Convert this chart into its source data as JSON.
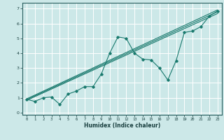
{
  "xlabel": "Humidex (Indice chaleur)",
  "background_color": "#cce8e8",
  "grid_color": "#b8d8d8",
  "line_color": "#1a7a6e",
  "xlim": [
    -0.5,
    23.5
  ],
  "ylim": [
    -0.15,
    7.4
  ],
  "xticks": [
    0,
    1,
    2,
    3,
    4,
    5,
    6,
    7,
    8,
    9,
    10,
    11,
    12,
    13,
    14,
    15,
    16,
    17,
    18,
    19,
    20,
    21,
    22,
    23
  ],
  "yticks": [
    0,
    1,
    2,
    3,
    4,
    5,
    6,
    7
  ],
  "data_x": [
    0,
    1,
    2,
    3,
    4,
    5,
    6,
    7,
    8,
    9,
    10,
    11,
    12,
    13,
    14,
    15,
    16,
    17,
    18,
    19,
    20,
    21,
    22,
    23
  ],
  "data_y": [
    0.9,
    0.75,
    1.0,
    1.05,
    0.55,
    1.25,
    1.45,
    1.75,
    1.75,
    2.6,
    4.0,
    5.1,
    5.0,
    4.0,
    3.6,
    3.55,
    3.0,
    2.2,
    3.5,
    5.4,
    5.5,
    5.8,
    6.5,
    6.85
  ],
  "reg_lines": [
    [
      0.92,
      6.92
    ],
    [
      0.87,
      6.8
    ],
    [
      0.82,
      6.68
    ]
  ]
}
